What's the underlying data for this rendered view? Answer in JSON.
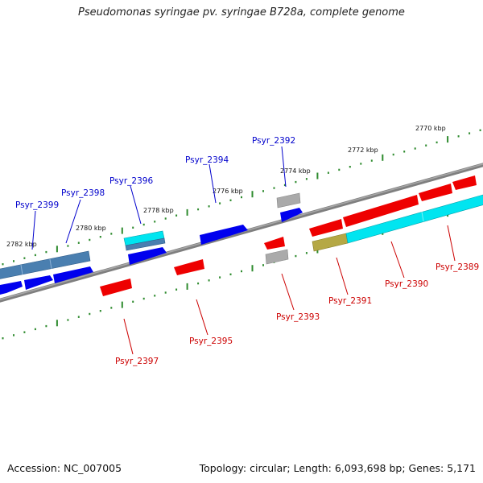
{
  "title": "Pseudomonas syringae pv. syringae B728a, complete genome",
  "footer": {
    "accession": "Accession: NC_007005",
    "summary": "Topology: circular; Length: 6,093,698 bp; Genes: 5,171"
  },
  "ruler": {
    "labels": [
      {
        "text": "2770 kbp",
        "pos": 2770
      },
      {
        "text": "2772 kbp",
        "pos": 2772
      },
      {
        "text": "2774 kbp",
        "pos": 2774
      },
      {
        "text": "2776 kbp",
        "pos": 2776
      },
      {
        "text": "2778 kbp",
        "pos": 2778
      },
      {
        "text": "2780 kbp",
        "pos": 2780
      },
      {
        "text": "2782 kbp",
        "pos": 2782
      }
    ]
  },
  "gene_labels": {
    "top": [
      {
        "name": "Psyr_2392",
        "color": "#0000cc"
      },
      {
        "name": "Psyr_2394",
        "color": "#0000cc"
      },
      {
        "name": "Psyr_2396",
        "color": "#0000cc"
      },
      {
        "name": "Psyr_2398",
        "color": "#0000cc"
      },
      {
        "name": "Psyr_2399",
        "color": "#0000cc"
      }
    ],
    "bottom": [
      {
        "name": "Psyr_2389",
        "color": "#cc0000"
      },
      {
        "name": "Psyr_2390",
        "color": "#cc0000"
      },
      {
        "name": "Psyr_2391",
        "color": "#cc0000"
      },
      {
        "name": "Psyr_2393",
        "color": "#cc0000"
      },
      {
        "name": "Psyr_2395",
        "color": "#cc0000"
      },
      {
        "name": "Psyr_2397",
        "color": "#cc0000"
      }
    ]
  },
  "colors": {
    "forward_gene": "#0000ee",
    "reverse_gene": "#ee0000",
    "gc_bar_blue": "#4a7fb0",
    "gc_bar_cyan": "#00e5f0",
    "gc_bar_olive": "#b5a845",
    "gray_feature": "#aaaaaa",
    "backbone": "#7f7f7f",
    "tick": "#2e8b2e"
  }
}
